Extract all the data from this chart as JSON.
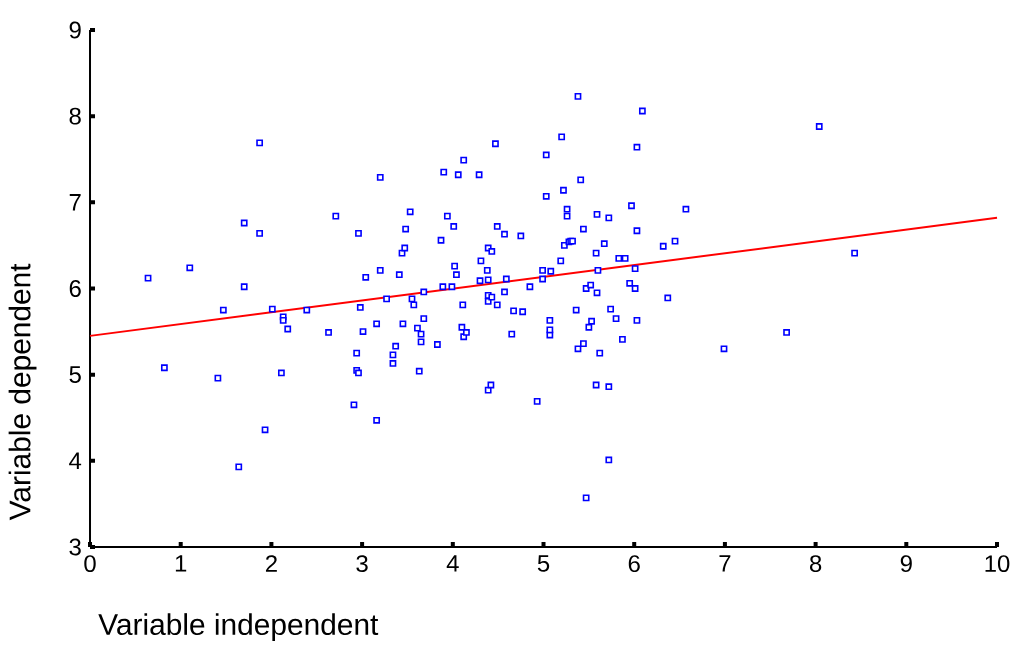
{
  "chart_data": {
    "type": "scatter",
    "xlabel": "Variable independent",
    "ylabel": "Variable dependent",
    "xlim": [
      0,
      10
    ],
    "ylim": [
      3,
      9
    ],
    "xticks": [
      0,
      1,
      2,
      3,
      4,
      5,
      6,
      7,
      8,
      9,
      10
    ],
    "yticks": [
      3,
      4,
      5,
      6,
      7,
      8,
      9
    ],
    "marker": "square",
    "series": [
      {
        "color": "#0000ff",
        "x": [
          0.64,
          0.82,
          1.1,
          1.41,
          1.47,
          1.64,
          1.7,
          1.7,
          1.87,
          1.87,
          1.93,
          2.01,
          2.11,
          2.13,
          2.13,
          2.18,
          2.39,
          2.63,
          2.71,
          2.91,
          2.94,
          2.94,
          2.96,
          2.96,
          2.98,
          3.01,
          3.04,
          3.16,
          3.16,
          3.2,
          3.2,
          3.27,
          3.34,
          3.34,
          3.37,
          3.41,
          3.44,
          3.45,
          3.47,
          3.48,
          3.53,
          3.55,
          3.57,
          3.61,
          3.63,
          3.65,
          3.65,
          3.68,
          3.68,
          3.83,
          3.87,
          3.89,
          3.9,
          3.94,
          3.99,
          4.01,
          4.02,
          4.04,
          4.06,
          4.1,
          4.11,
          4.12,
          4.12,
          4.15,
          4.29,
          4.3,
          4.31,
          4.38,
          4.39,
          4.39,
          4.39,
          4.39,
          4.39,
          4.42,
          4.43,
          4.43,
          4.47,
          4.49,
          4.49,
          4.57,
          4.57,
          4.59,
          4.65,
          4.67,
          4.77,
          4.75,
          4.85,
          4.93,
          4.99,
          4.99,
          5.03,
          5.03,
          5.07,
          5.07,
          5.07,
          5.08,
          5.19,
          5.2,
          5.22,
          5.23,
          5.26,
          5.26,
          5.28,
          5.3,
          5.32,
          5.36,
          5.38,
          5.38,
          5.41,
          5.44,
          5.44,
          5.47,
          5.47,
          5.5,
          5.52,
          5.53,
          5.58,
          5.58,
          5.59,
          5.59,
          5.6,
          5.62,
          5.67,
          5.72,
          5.72,
          5.72,
          5.74,
          5.8,
          5.83,
          5.87,
          5.9,
          5.95,
          5.97,
          6.01,
          6.01,
          6.03,
          6.03,
          6.03,
          6.09,
          6.32,
          6.37,
          6.45,
          6.57,
          6.99,
          7.68,
          8.04,
          8.43
        ],
        "values": [
          6.12,
          5.08,
          6.24,
          4.96,
          5.75,
          3.93,
          6.76,
          6.02,
          7.69,
          6.64,
          4.36,
          5.76,
          5.02,
          5.67,
          5.63,
          5.53,
          5.75,
          5.49,
          6.84,
          4.65,
          5.05,
          5.25,
          5.02,
          6.64,
          5.78,
          5.5,
          6.13,
          4.47,
          5.59,
          7.29,
          6.21,
          5.88,
          5.13,
          5.23,
          5.33,
          6.16,
          6.41,
          5.59,
          6.47,
          6.69,
          6.89,
          5.88,
          5.81,
          5.54,
          5.04,
          5.47,
          5.38,
          5.65,
          5.96,
          5.35,
          6.56,
          6.02,
          7.35,
          6.84,
          6.02,
          6.72,
          6.26,
          6.16,
          7.32,
          5.55,
          5.81,
          7.49,
          5.44,
          5.49,
          7.32,
          6.09,
          6.32,
          6.21,
          6.47,
          4.82,
          5.85,
          5.92,
          6.1,
          4.88,
          6.43,
          5.9,
          7.68,
          6.72,
          5.81,
          6.63,
          5.96,
          6.11,
          5.47,
          5.74,
          5.73,
          6.61,
          6.02,
          4.69,
          6.21,
          6.11,
          7.55,
          7.07,
          5.46,
          5.52,
          5.63,
          6.2,
          6.32,
          7.76,
          7.14,
          6.5,
          6.84,
          6.92,
          6.54,
          6.55,
          6.55,
          5.75,
          8.23,
          5.3,
          7.26,
          5.36,
          6.69,
          3.57,
          6.0,
          5.55,
          6.04,
          5.62,
          4.88,
          6.41,
          6.86,
          5.95,
          6.21,
          5.25,
          6.52,
          4.01,
          4.86,
          6.82,
          5.76,
          5.65,
          6.35,
          5.41,
          6.35,
          6.06,
          6.96,
          6.23,
          6.0,
          7.64,
          5.63,
          6.67,
          8.06,
          6.49,
          5.89,
          6.55,
          6.92,
          5.3,
          5.49,
          7.88,
          6.41
        ]
      },
      {
        "type": "line",
        "color": "#ff0000",
        "marker": "none",
        "x": [
          0,
          10
        ],
        "values": [
          5.45,
          6.82
        ]
      }
    ]
  }
}
